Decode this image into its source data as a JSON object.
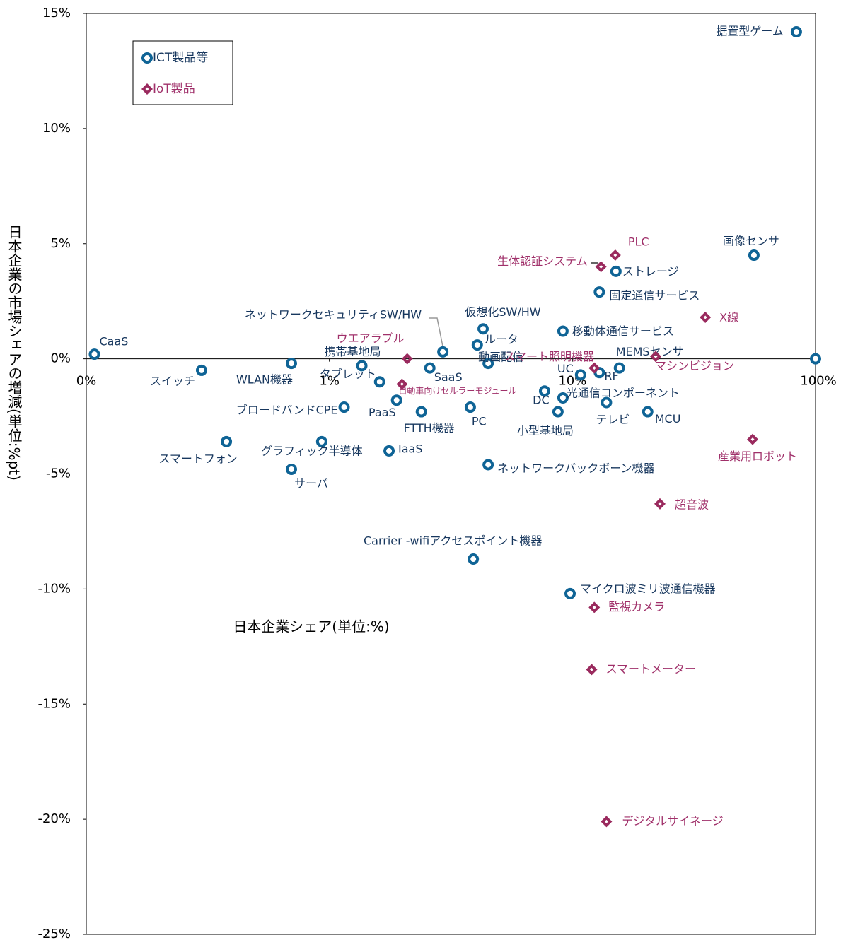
{
  "chart_data": {
    "type": "scatter",
    "x_label": "日本企業シェア(単位:%)",
    "y_label": "日本企業の市場シェアの増減(単位:%pt)",
    "xlog": true,
    "xlim": [
      0.1,
      100
    ],
    "xticks": [
      {
        "value": 0.1,
        "label": "0%"
      },
      {
        "value": 1,
        "label": "1%"
      },
      {
        "value": 10,
        "label": "10%"
      },
      {
        "value": 100,
        "label": "100%"
      }
    ],
    "ylim": [
      -25,
      15
    ],
    "yticks": [
      {
        "value": -25,
        "label": "-25%"
      },
      {
        "value": -20,
        "label": "-20%"
      },
      {
        "value": -15,
        "label": "-15%"
      },
      {
        "value": -10,
        "label": "-10%"
      },
      {
        "value": -5,
        "label": "-5%"
      },
      {
        "value": 0,
        "label": "0%"
      },
      {
        "value": 5,
        "label": "5%"
      },
      {
        "value": 10,
        "label": "10%"
      },
      {
        "value": 15,
        "label": "15%"
      }
    ],
    "legend": "top-left",
    "series": [
      {
        "name": "ICT製品等",
        "color": "#0f6496",
        "label_color": "#17375e",
        "marker": "circle",
        "labels": [
          "据置型ゲーム",
          "CaaS",
          "スイッチ",
          "WLAN機器",
          "携帯基地局",
          "タブレット",
          "ブロードバンドCPE",
          "PaaS",
          "SaaS",
          "ネットワークセキュリティSW/HW",
          "FTTH機器",
          "PC",
          "仮想化SW/HW",
          "ルータ",
          "動画配信",
          "スマートフォン",
          "グラフィック半導体",
          "サーバ",
          "IaaS",
          "ネットワークバックボーン機器",
          "Carrier -wifiアクセスポイント機器",
          "移動体通信サービス",
          "固定通信サービス",
          "ストレージ",
          "画像センサ",
          "UC",
          "RF",
          "MEMSセンサ",
          "DC",
          "光通信コンポーネント",
          "小型基地局",
          "テレビ",
          "MCU",
          null,
          "マイクロ波ミリ波通信機器"
        ],
        "x": [
          83.4,
          0.108,
          0.298,
          0.698,
          1.36,
          1.61,
          1.15,
          1.89,
          2.59,
          2.93,
          2.39,
          3.8,
          4.29,
          4.06,
          4.5,
          0.377,
          0.93,
          0.698,
          1.76,
          4.5,
          3.91,
          9.14,
          12.9,
          15.1,
          55.8,
          10.8,
          12.9,
          15.6,
          7.68,
          9.14,
          8.72,
          13.8,
          20.4,
          100,
          9.78
        ],
        "values": [
          14.2,
          0.2,
          -0.5,
          -0.2,
          -0.3,
          -1.0,
          -2.1,
          -1.8,
          -0.4,
          0.3,
          -2.3,
          -2.1,
          1.3,
          0.6,
          -0.2,
          -3.6,
          -3.6,
          -4.8,
          -4.0,
          -4.6,
          -8.7,
          1.2,
          2.9,
          3.8,
          4.5,
          -0.7,
          -0.6,
          -0.4,
          -1.4,
          -1.7,
          -2.3,
          -1.9,
          -2.3,
          0.0,
          -10.2
        ]
      },
      {
        "name": "IoT製品",
        "color": "#9a2a5e",
        "label_color": "#a0306a",
        "marker": "diamond",
        "labels": [
          "PLC",
          "生体認証システム",
          "X線",
          "ウエアラブル",
          "自動車向けセルラーモジュール",
          "スマート照明機器",
          "マシンビジョン",
          "産業用ロボット",
          "超音波",
          "監視カメラ",
          "スマートメーター",
          "デジタルサイネージ"
        ],
        "x": [
          15.0,
          13.1,
          35.2,
          2.09,
          1.99,
          12.3,
          22.0,
          55.1,
          22.9,
          12.3,
          12.0,
          13.8
        ],
        "values": [
          4.5,
          4.0,
          1.8,
          0.0,
          -1.1,
          -0.4,
          0.1,
          -3.5,
          -6.3,
          -10.8,
          -13.5,
          -20.1
        ]
      }
    ]
  }
}
